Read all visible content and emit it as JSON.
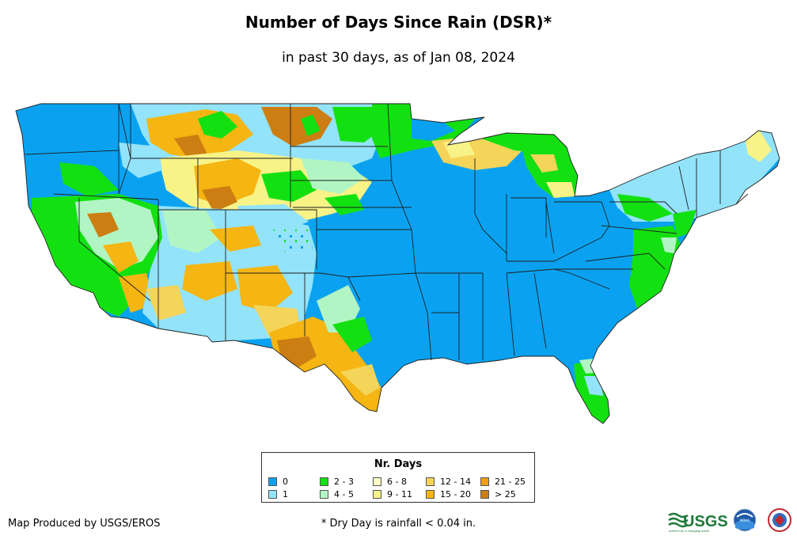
{
  "title": "Number of Days Since Rain (DSR)*",
  "subtitle": "in past 30 days, as of Jan 08, 2024",
  "legend": {
    "title": "Nr. Days",
    "items": [
      {
        "label": "0",
        "color": "#0aa2f0"
      },
      {
        "label": "1",
        "color": "#93e3fa"
      },
      {
        "label": "2 - 3",
        "color": "#13e011"
      },
      {
        "label": "4 - 5",
        "color": "#b2f5c4"
      },
      {
        "label": "6 - 8",
        "color": "#fbfbc4"
      },
      {
        "label": "9 - 11",
        "color": "#f7f387"
      },
      {
        "label": "12 - 14",
        "color": "#f5d45a"
      },
      {
        "label": "15 - 20",
        "color": "#f5b512"
      },
      {
        "label": "21 - 25",
        "color": "#ee9e10"
      },
      {
        "label": "> 25",
        "color": "#cc7e12"
      }
    ]
  },
  "credit": "Map Produced by USGS/EROS",
  "footnote": "* Dry Day is rainfall < 0.04 in.",
  "logos": {
    "usgs": "USGS",
    "usgs_tagline": "science for a changing world",
    "noaa": "NOAA"
  }
}
